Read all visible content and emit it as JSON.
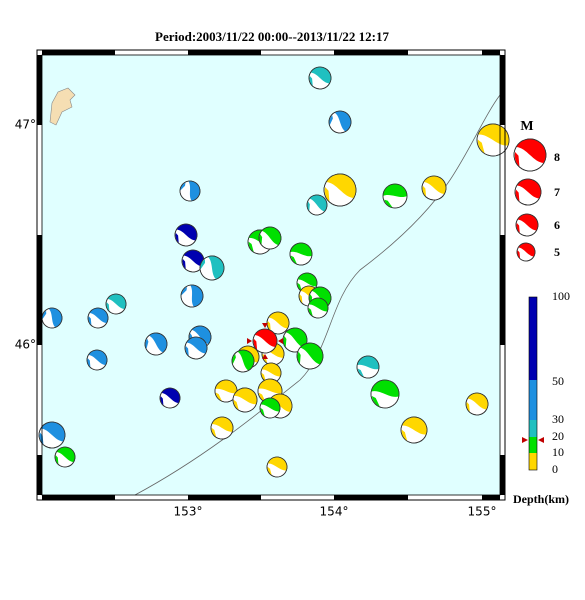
{
  "header": {
    "title": "Period:2003/11/22 00:00--2013/11/22 12:17"
  },
  "axes": {
    "lat_labels": [
      "47°",
      "46°"
    ],
    "lon_labels": [
      "153°",
      "154°",
      "155°"
    ]
  },
  "magnitude_legend": {
    "title": "M",
    "labels": [
      "8",
      "7",
      "6",
      "5"
    ]
  },
  "depth_legend": {
    "labels": [
      "100",
      "50",
      "30",
      "20",
      "10",
      "0"
    ],
    "title": "Depth(km)"
  }
}
